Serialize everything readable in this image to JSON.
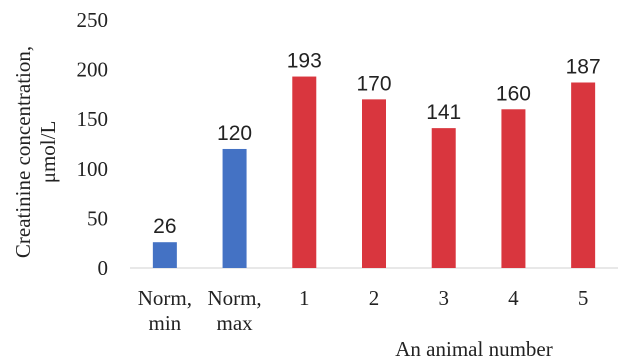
{
  "chart_data": {
    "type": "bar",
    "categories": [
      [
        "Norm,",
        "min"
      ],
      [
        "Norm,",
        "max"
      ],
      [
        "1"
      ],
      [
        "2"
      ],
      [
        "3"
      ],
      [
        "4"
      ],
      [
        "5"
      ]
    ],
    "values": [
      26,
      120,
      193,
      170,
      141,
      160,
      187
    ],
    "bar_colors": [
      "#4472C4",
      "#4472C4",
      "#D9363E",
      "#D9363E",
      "#D9363E",
      "#D9363E",
      "#D9363E"
    ],
    "xlabel": "An animal  number",
    "ylabel": [
      "Creatinine  concentration,",
      "μmol/L"
    ],
    "ylim": [
      0,
      250
    ],
    "yticks": [
      0,
      50,
      100,
      150,
      200,
      250
    ],
    "grid": false,
    "legend": "none"
  }
}
